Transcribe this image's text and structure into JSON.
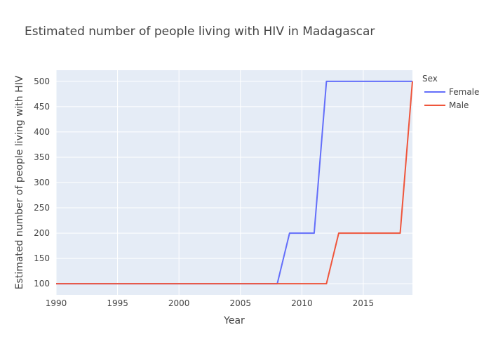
{
  "chart_data": {
    "type": "line",
    "title": "Estimated number of people living with HIV in Madagascar",
    "xlabel": "Year",
    "ylabel": "Estimated number of people living with HIV",
    "xlim": [
      1990,
      2019
    ],
    "ylim": [
      78,
      522
    ],
    "x_ticks": [
      1990,
      1995,
      2000,
      2005,
      2010,
      2015
    ],
    "y_ticks": [
      100,
      150,
      200,
      250,
      300,
      350,
      400,
      450,
      500
    ],
    "grid": true,
    "legend": {
      "title": "Sex",
      "placement": "top-right"
    },
    "series": [
      {
        "name": "Female",
        "color": "#636efa",
        "x": [
          1990,
          1991,
          1992,
          1993,
          1994,
          1995,
          1996,
          1997,
          1998,
          1999,
          2000,
          2001,
          2002,
          2003,
          2004,
          2005,
          2006,
          2007,
          2008,
          2009,
          2010,
          2011,
          2012,
          2013,
          2014,
          2015,
          2016,
          2017,
          2018,
          2019
        ],
        "y": [
          100,
          100,
          100,
          100,
          100,
          100,
          100,
          100,
          100,
          100,
          100,
          100,
          100,
          100,
          100,
          100,
          100,
          100,
          100,
          200,
          200,
          200,
          500,
          500,
          500,
          500,
          500,
          500,
          500,
          500
        ]
      },
      {
        "name": "Male",
        "color": "#ef553b",
        "x": [
          1990,
          1991,
          1992,
          1993,
          1994,
          1995,
          1996,
          1997,
          1998,
          1999,
          2000,
          2001,
          2002,
          2003,
          2004,
          2005,
          2006,
          2007,
          2008,
          2009,
          2010,
          2011,
          2012,
          2013,
          2014,
          2015,
          2016,
          2017,
          2018,
          2019
        ],
        "y": [
          100,
          100,
          100,
          100,
          100,
          100,
          100,
          100,
          100,
          100,
          100,
          100,
          100,
          100,
          100,
          100,
          100,
          100,
          100,
          100,
          100,
          100,
          100,
          200,
          200,
          200,
          200,
          200,
          200,
          500
        ]
      }
    ]
  }
}
